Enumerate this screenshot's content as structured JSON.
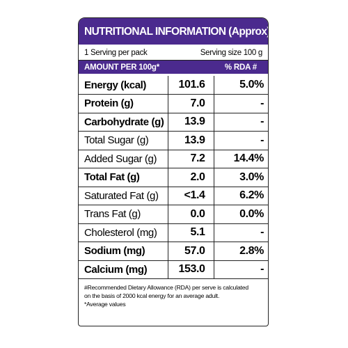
{
  "header": {
    "title": "NUTRITIONAL INFORMATION (Approx)"
  },
  "serving": {
    "per_pack": "1 Serving per pack",
    "size": "Serving size 100 g"
  },
  "table": {
    "columns": [
      "AMOUNT PER 100g*",
      "% RDA #"
    ],
    "rows": [
      [
        "Energy (kcal)",
        "101.6",
        "5.0%"
      ],
      [
        "Protein (g)",
        "7.0",
        "-"
      ],
      [
        "Carbohydrate (g)",
        "13.9",
        "-"
      ],
      [
        "Total Sugar (g)",
        "13.9",
        "-"
      ],
      [
        "Added Sugar (g)",
        "7.2",
        "14.4%"
      ],
      [
        "Total Fat (g)",
        "2.0",
        "3.0%"
      ],
      [
        "Saturated Fat (g)",
        "<1.4",
        "6.2%"
      ],
      [
        "Trans Fat (g)",
        "0.0",
        "0.0%"
      ],
      [
        "Cholesterol (mg)",
        "5.1",
        "-"
      ],
      [
        "Sodium (mg)",
        "57.0",
        "2.8%"
      ],
      [
        "Calcium (mg)",
        "153.0",
        "-"
      ]
    ]
  },
  "footnotes": [
    "#Recommended Dietary Allowance (RDA) per serve is calculated",
    "on the basis of 2000 kcal energy for an average adult.",
    "*Average values"
  ]
}
